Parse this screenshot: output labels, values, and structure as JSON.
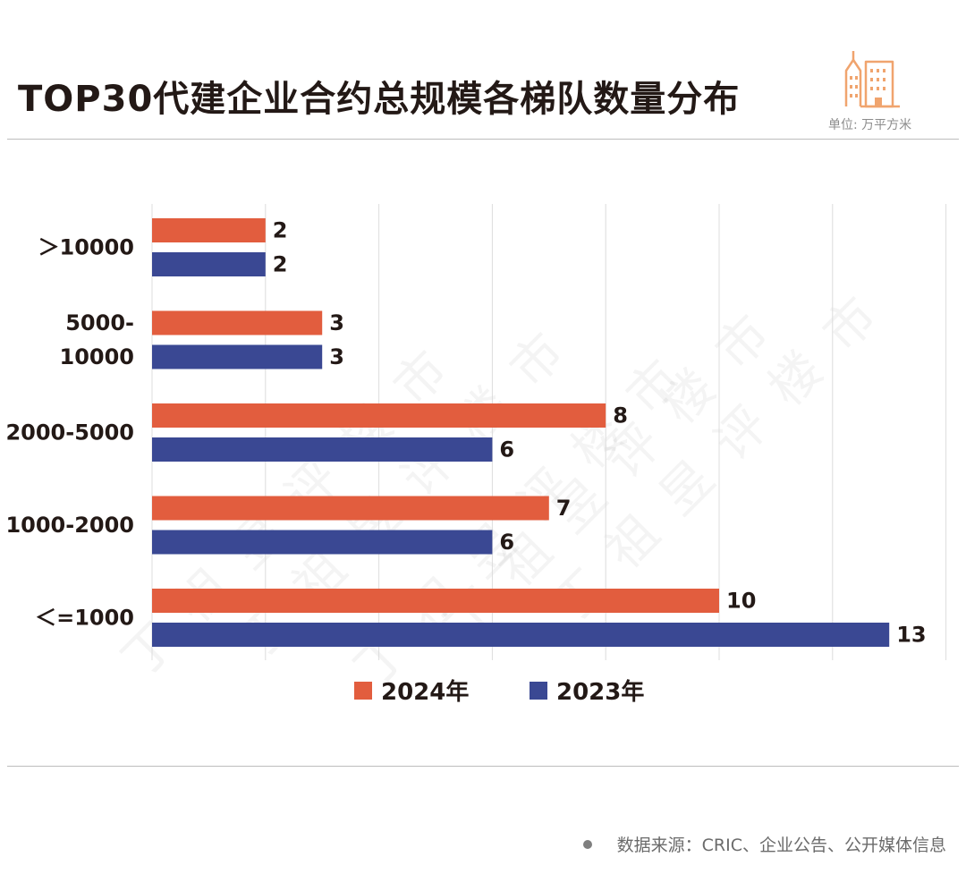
{
  "header": {
    "title": "TOP30代建企业合约总规模各梯队数量分布",
    "unit_note": "单位: 万平方米",
    "icon": "building-icon"
  },
  "watermark": {
    "text": "丁祖昱评楼市"
  },
  "footer": {
    "source": "数据来源：CRIC、企业公告、公开媒体信息"
  },
  "colors": {
    "series_2024": "#E25D3E",
    "series_2023": "#3A4893",
    "icon": "#F0A46E"
  },
  "chart_data": {
    "type": "bar",
    "orientation": "horizontal",
    "categories": [
      [
        "＞10000"
      ],
      [
        "5000-",
        "10000"
      ],
      [
        "2000-5000"
      ],
      [
        "1000-2000"
      ],
      [
        "＜=1000"
      ]
    ],
    "series": [
      {
        "name": "2024年",
        "values": [
          2,
          3,
          8,
          7,
          10
        ],
        "color": "#E25D3E"
      },
      {
        "name": "2023年",
        "values": [
          2,
          3,
          6,
          6,
          13
        ],
        "color": "#3A4893"
      }
    ],
    "xlim": [
      0,
      14
    ],
    "grid": true,
    "legend": "bottom-center",
    "title": "TOP30代建企业合约总规模各梯队数量分布"
  }
}
